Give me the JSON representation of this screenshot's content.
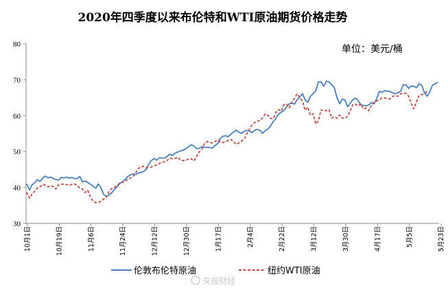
{
  "title": "2020年四季度以来布伦特和WTI原油期货价格走势",
  "unit_label": "单位：美元/桶",
  "watermark": "央视财经",
  "chart_data": {
    "type": "line",
    "title": "2020年四季度以来布伦特和WTI原油期货价格走势",
    "xlabel": "",
    "ylabel": "",
    "ylim": [
      30,
      80
    ],
    "yticks": [
      30,
      40,
      50,
      60,
      70,
      80
    ],
    "grid": false,
    "legend_position": "bottom",
    "x_tick_labels": [
      "10月1日",
      "10月19日",
      "11月6日",
      "11月24日",
      "12月12日",
      "12月30日",
      "1月17日",
      "2月4日",
      "2月22日",
      "3月12日",
      "3月30日",
      "4月17日",
      "5月5日",
      "5月23日"
    ],
    "colors": {
      "brent": "#4a7ebb",
      "wti": "#be4b48"
    },
    "series": [
      {
        "name": "伦敦布伦特原油",
        "values": [
          41.0,
          39.3,
          40.7,
          41.4,
          42.2,
          41.7,
          42.6,
          43.2,
          42.7,
          42.9,
          42.5,
          42.2,
          42.1,
          42.8,
          42.7,
          42.9,
          42.6,
          42.8,
          42.5,
          42.5,
          43.1,
          41.6,
          41.8,
          41.4,
          40.9,
          40.4,
          39.8,
          41.0,
          39.9,
          38.1,
          37.5,
          37.9,
          38.5,
          39.4,
          40.2,
          41.1,
          41.5,
          42.2,
          43.0,
          43.5,
          43.8,
          43.6,
          44.0,
          44.2,
          44.4,
          45.0,
          46.5,
          47.5,
          48.1,
          47.6,
          48.3,
          48.2,
          48.2,
          48.7,
          49.3,
          48.9,
          49.6,
          49.9,
          50.2,
          50.4,
          50.8,
          51.4,
          51.9,
          51.6,
          50.8,
          50.9,
          51.4,
          51.2,
          51.2,
          51.1,
          51.0,
          51.7,
          52.2,
          53.7,
          54.3,
          54.4,
          54.2,
          54.9,
          55.4,
          56.0,
          55.4,
          55.1,
          55.7,
          55.9,
          55.7,
          55.3,
          56.0,
          56.2,
          55.9,
          55.1,
          55.9,
          56.3,
          57.2,
          58.4,
          59.3,
          60.5,
          61.0,
          61.5,
          62.4,
          63.3,
          63.5,
          63.2,
          64.5,
          65.2,
          66.1,
          64.4,
          63.7,
          65.4,
          66.1,
          66.9,
          69.4,
          69.4,
          68.2,
          69.6,
          69.4,
          68.6,
          67.8,
          65.1,
          63.3,
          64.6,
          64.4,
          62.5,
          63.5,
          64.4,
          64.9,
          64.2,
          63.0,
          62.9,
          62.7,
          63.0,
          63.7,
          63.3,
          64.8,
          66.8,
          66.5,
          67.0,
          66.8,
          66.8,
          66.3,
          66.1,
          66.4,
          66.8,
          68.6,
          68.6,
          67.6,
          68.3,
          68.2,
          67.8,
          68.9,
          68.5,
          66.4,
          65.4,
          66.6,
          68.5,
          68.8,
          69.3
        ],
        "line_style": "solid"
      },
      {
        "name": "纽约WTI原油",
        "values": [
          38.7,
          37.0,
          38.2,
          39.0,
          39.9,
          40.2,
          40.9,
          40.6,
          40.2,
          40.5,
          40.3,
          39.6,
          40.8,
          40.9,
          41.0,
          40.8,
          40.6,
          40.9,
          41.0,
          40.6,
          39.9,
          39.6,
          38.6,
          39.2,
          37.5,
          36.2,
          35.8,
          35.9,
          36.2,
          36.8,
          37.2,
          38.8,
          39.7,
          40.0,
          40.5,
          41.2,
          41.4,
          41.8,
          42.2,
          42.6,
          43.0,
          44.0,
          45.2,
          45.8,
          45.9,
          45.5,
          45.6,
          45.7,
          46.1,
          46.3,
          46.7,
          47.0,
          47.2,
          47.6,
          48.2,
          48.0,
          48.1,
          48.4,
          47.6,
          47.5,
          47.6,
          47.9,
          48.0,
          47.4,
          48.5,
          49.9,
          50.6,
          52.2,
          52.8,
          52.6,
          52.4,
          52.8,
          53.2,
          52.7,
          52.5,
          52.8,
          53.1,
          53.4,
          52.8,
          52.0,
          52.4,
          52.9,
          53.5,
          55.0,
          56.2,
          57.5,
          58.1,
          58.5,
          58.6,
          59.5,
          60.5,
          60.1,
          59.2,
          59.2,
          61.0,
          61.7,
          61.3,
          63.1,
          63.2,
          62.2,
          63.8,
          64.9,
          66.1,
          65.1,
          64.0,
          61.5,
          62.4,
          60.1,
          60.5,
          57.7,
          58.6,
          61.6,
          61.5,
          61.4,
          61.7,
          59.3,
          59.7,
          59.3,
          60.2,
          59.3,
          59.3,
          59.8,
          61.3,
          63.1,
          63.2,
          62.7,
          63.3,
          61.9,
          62.1,
          61.4,
          62.9,
          63.6,
          64.1,
          64.5,
          64.9,
          65.0,
          64.7,
          64.7,
          65.4,
          65.5,
          65.4,
          66.1,
          66.3,
          66.2,
          65.5,
          63.4,
          61.9,
          63.9,
          65.6,
          65.9,
          66.1,
          66.8
        ],
        "line_style": "dashed"
      }
    ]
  }
}
